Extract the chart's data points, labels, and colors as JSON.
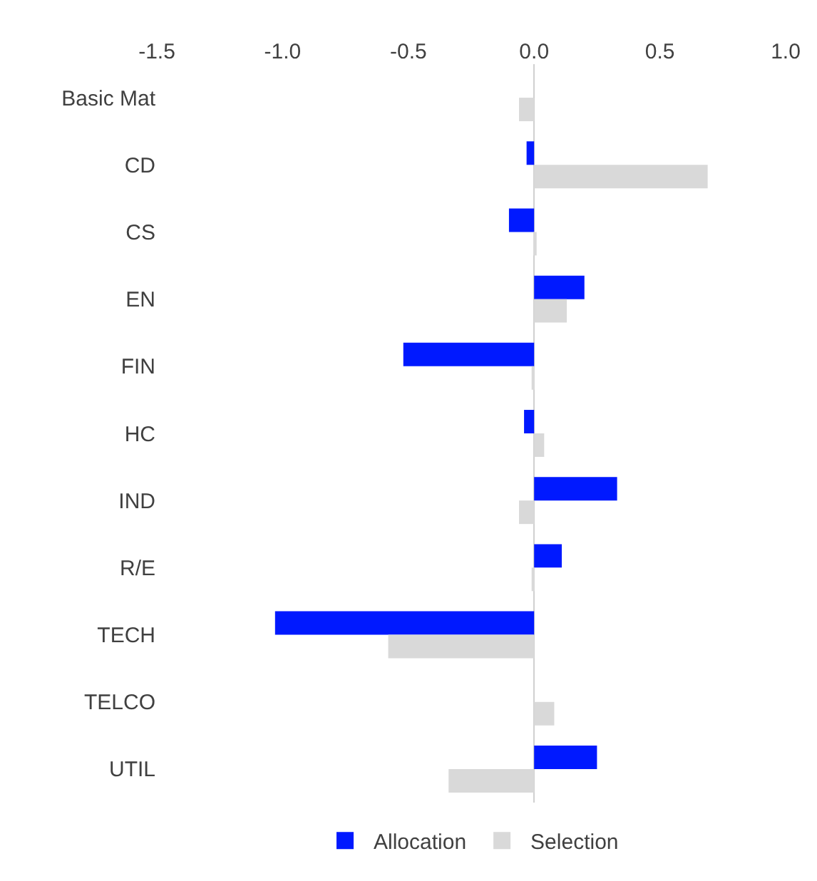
{
  "chart_data": {
    "type": "bar",
    "orientation": "horizontal",
    "categories": [
      "Basic Mat",
      "CD",
      "CS",
      "EN",
      "FIN",
      "HC",
      "IND",
      "R/E",
      "TECH",
      "TELCO",
      "UTIL"
    ],
    "series": [
      {
        "name": "Allocation",
        "color": "#0019ff",
        "values": [
          0,
          -0.03,
          -0.1,
          0.2,
          -0.52,
          -0.04,
          0.33,
          0.11,
          -1.03,
          0,
          0.25
        ]
      },
      {
        "name": "Selection",
        "color": "#d9d9d9",
        "values": [
          -0.06,
          0.69,
          0.01,
          0.13,
          -0.01,
          0.04,
          -0.06,
          -0.01,
          -0.58,
          0.08,
          -0.34
        ]
      }
    ],
    "xlim": [
      -1.5,
      1.0
    ],
    "xticks": [
      {
        "value": -1.5,
        "label": "-1.5"
      },
      {
        "value": -1.0,
        "label": "-1.0"
      },
      {
        "value": -0.5,
        "label": "-0.5"
      },
      {
        "value": 0,
        "label": "0.0"
      },
      {
        "value": 0.5,
        "label": "0.5"
      },
      {
        "value": 1.0,
        "label": "1.0"
      }
    ],
    "legend": "bottom"
  }
}
